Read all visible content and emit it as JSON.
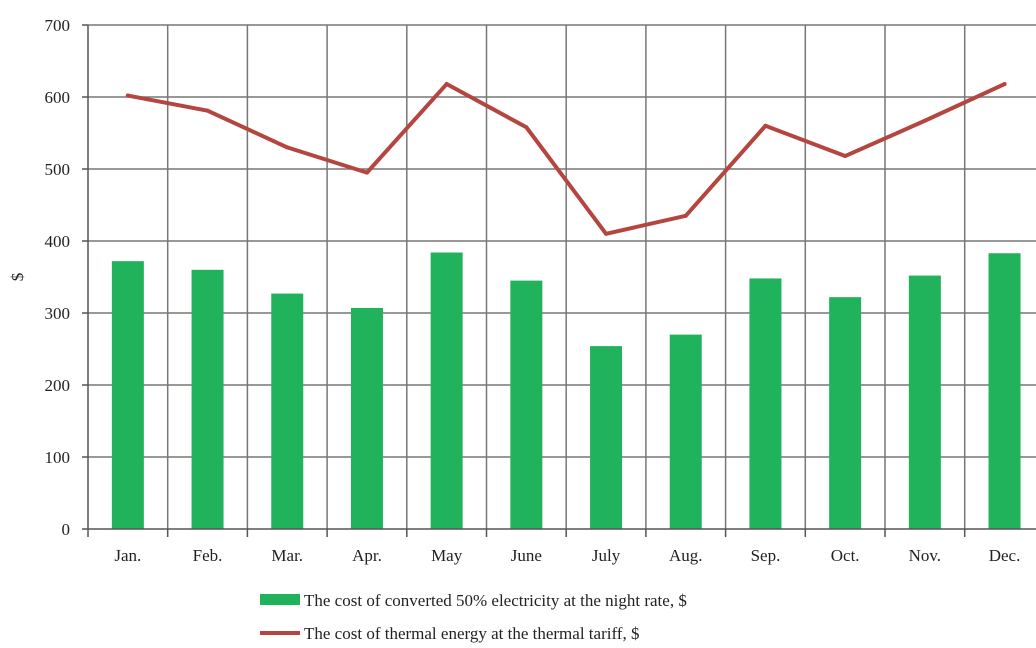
{
  "colors": {
    "bar": "#21b35c",
    "line": "#b5463f",
    "grid": "#777777",
    "text": "#222222"
  },
  "chart_data": {
    "type": "bar",
    "title": "",
    "xlabel": "",
    "ylabel": "$",
    "ylim": [
      0,
      700
    ],
    "y_ticks": [
      0,
      100,
      200,
      300,
      400,
      500,
      600,
      700
    ],
    "categories": [
      "Jan.",
      "Feb.",
      "Mar.",
      "Apr.",
      "May",
      "June",
      "July",
      "Aug.",
      "Sep.",
      "Oct.",
      "Nov.",
      "Dec."
    ],
    "grid": true,
    "legend_position": "bottom",
    "series": [
      {
        "name": "The cost of converted 50% electricity at the night rate, $",
        "type": "bar",
        "values": [
          372,
          360,
          327,
          307,
          384,
          345,
          254,
          270,
          348,
          322,
          352,
          383
        ]
      },
      {
        "name": "The cost of thermal energy at the thermal tariff, $",
        "type": "line",
        "values": [
          602,
          581,
          530,
          495,
          618,
          558,
          410,
          435,
          560,
          518,
          567,
          618
        ]
      }
    ]
  }
}
